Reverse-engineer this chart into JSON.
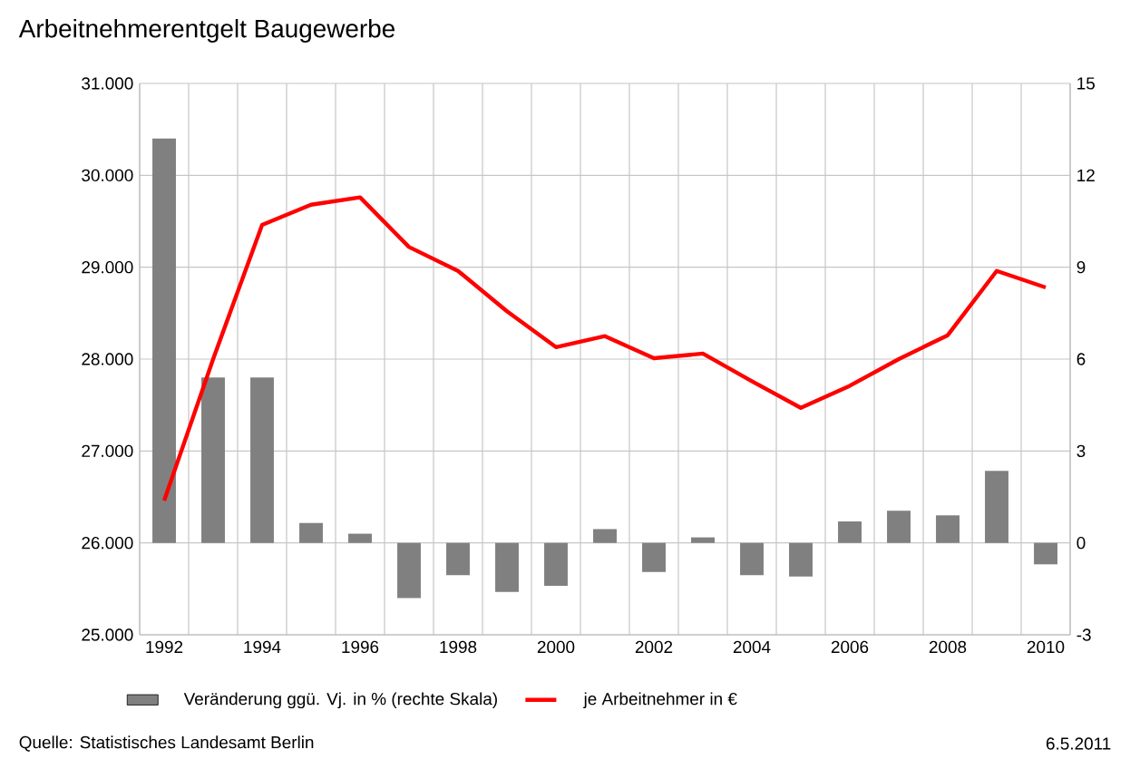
{
  "chart_data": {
    "type": "bar",
    "title": "Arbeitnehmerentgelt Baugewerbe",
    "categories": [
      "1992",
      null,
      "1994",
      null,
      "1996",
      null,
      "1998",
      null,
      "2000",
      null,
      "2002",
      null,
      "2004",
      null,
      "2006",
      null,
      "2008",
      null,
      "2010"
    ],
    "series": [
      {
        "name": "Veränderung ggü. Vj. in % (rechte Skala)",
        "axis": "y2",
        "color": "#808080",
        "values": [
          13.2,
          5.4,
          5.4,
          0.65,
          0.3,
          -1.8,
          -1.05,
          -1.6,
          -1.4,
          0.45,
          -0.95,
          0.18,
          -1.05,
          -1.1,
          0.7,
          1.05,
          0.9,
          2.35,
          -0.7
        ]
      },
      {
        "name": "je Arbeitnehmer in €",
        "type": "line",
        "color": "#ff0000",
        "values": [
          26460,
          28000,
          29460,
          29680,
          29760,
          29220,
          28960,
          28520,
          28130,
          28250,
          28010,
          28060,
          27760,
          27470,
          27710,
          28000,
          28260,
          28960,
          28780
        ]
      }
    ],
    "ylim": [
      25000,
      31000
    ],
    "yticks": [
      {
        "value": 25000,
        "label": "25.000"
      },
      {
        "value": 26000,
        "label": "26.000"
      },
      {
        "value": 27000,
        "label": "27.000"
      },
      {
        "value": 28000,
        "label": "28.000"
      },
      {
        "value": 29000,
        "label": "29.000"
      },
      {
        "value": 30000,
        "label": "30.000"
      },
      {
        "value": 31000,
        "label": "31.000"
      }
    ],
    "y2lim": [
      -3,
      15
    ],
    "y2ticks": [
      -3,
      0,
      3,
      6,
      9,
      12,
      15
    ],
    "grid": true,
    "legend": "bottom",
    "annotations": [
      "Quelle: Statistisches Landesamt Berlin",
      "6.5.2011"
    ]
  }
}
